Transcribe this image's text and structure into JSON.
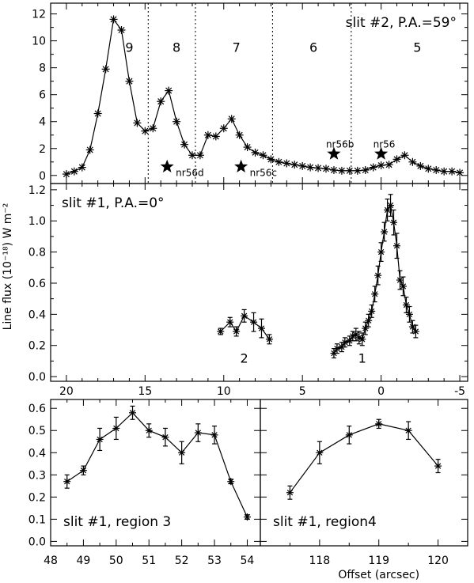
{
  "chart_data": [
    {
      "id": "top",
      "type": "line",
      "annotation": "slit  #2,  P.A.=59°",
      "xlim": [
        21,
        -5.5
      ],
      "ylim": [
        -0.6,
        12.8
      ],
      "yticks": [
        0,
        2,
        4,
        6,
        8,
        10,
        12
      ],
      "series": [
        {
          "marker": "asterisk",
          "x": [
            20.0,
            19.5,
            19.0,
            18.5,
            18.0,
            17.5,
            17.0,
            16.5,
            16.0,
            15.5,
            15.0,
            14.5,
            14.0,
            13.5,
            13.0,
            12.5,
            12.0,
            11.5,
            11.0,
            10.5,
            10.0,
            9.5,
            9.0,
            8.5,
            8.0,
            7.5,
            7.0,
            6.5,
            6.0,
            5.5,
            5.0,
            4.5,
            4.0,
            3.5,
            3.0,
            2.5,
            2.0,
            1.5,
            1.0,
            0.5,
            0.0,
            -0.5,
            -1.0,
            -1.5,
            -2.0,
            -2.5,
            -3.0,
            -3.5,
            -4.0,
            -4.5,
            -5.0
          ],
          "y": [
            0.1,
            0.3,
            0.6,
            1.9,
            4.6,
            7.9,
            11.6,
            10.8,
            7.0,
            3.9,
            3.3,
            3.5,
            5.5,
            6.3,
            4.0,
            2.3,
            1.5,
            1.5,
            3.0,
            2.9,
            3.5,
            4.2,
            3.0,
            2.1,
            1.7,
            1.5,
            1.2,
            1.0,
            0.9,
            0.8,
            0.7,
            0.6,
            0.55,
            0.5,
            0.4,
            0.35,
            0.35,
            0.35,
            0.4,
            0.6,
            0.75,
            0.8,
            1.2,
            1.5,
            1.0,
            0.7,
            0.5,
            0.4,
            0.3,
            0.3,
            0.2
          ]
        }
      ],
      "vlines": [
        14.8,
        11.8,
        6.9,
        1.9
      ],
      "region_labels": [
        {
          "text": "9",
          "x": 16.0,
          "y": 9.2
        },
        {
          "text": "8",
          "x": 13.0,
          "y": 9.2
        },
        {
          "text": "7",
          "x": 9.2,
          "y": 9.2
        },
        {
          "text": "6",
          "x": 4.3,
          "y": 9.2
        },
        {
          "text": "5",
          "x": -2.3,
          "y": 9.2
        }
      ],
      "stars": [
        {
          "label": "nr56d",
          "x": 13.6,
          "y": 0.65
        },
        {
          "label": "nr56c",
          "x": 8.9,
          "y": 0.65
        },
        {
          "label": "nr56b",
          "x": 3.0,
          "y": 1.6
        },
        {
          "label": "nr56",
          "x": 0.0,
          "y": 1.6
        }
      ]
    },
    {
      "id": "middle",
      "type": "line",
      "annotation": "slit  #1,  P.A.=0°",
      "ylabel": "Line flux (10⁻¹⁸) W m⁻²",
      "xlim": [
        21,
        -5.5
      ],
      "ylim": [
        -0.03,
        1.24
      ],
      "yticks": [
        0.0,
        0.2,
        0.4,
        0.6,
        0.8,
        1.0,
        1.2
      ],
      "xticks": [
        20,
        15,
        10,
        5,
        0,
        -5
      ],
      "series": [
        {
          "name": "2",
          "marker": "asterisk",
          "x": [
            10.2,
            9.6,
            9.2,
            8.7,
            8.1,
            7.6,
            7.1
          ],
          "y": [
            0.29,
            0.35,
            0.29,
            0.39,
            0.35,
            0.31,
            0.24
          ],
          "err": [
            0.02,
            0.03,
            0.03,
            0.04,
            0.06,
            0.06,
            0.03
          ]
        },
        {
          "name": "1",
          "marker": "asterisk",
          "x": [
            3.0,
            2.8,
            2.5,
            2.3,
            2.0,
            1.8,
            1.6,
            1.4,
            1.2,
            1.0,
            0.8,
            0.6,
            0.4,
            0.2,
            0.0,
            -0.2,
            -0.4,
            -0.6,
            -0.8,
            -1.0,
            -1.2,
            -1.4,
            -1.6,
            -1.8,
            -2.0,
            -2.2
          ],
          "y": [
            0.15,
            0.18,
            0.19,
            0.22,
            0.23,
            0.26,
            0.27,
            0.25,
            0.24,
            0.31,
            0.36,
            0.42,
            0.53,
            0.65,
            0.8,
            0.93,
            1.07,
            1.1,
            0.99,
            0.84,
            0.62,
            0.58,
            0.46,
            0.4,
            0.32,
            0.29
          ],
          "err": [
            0.03,
            0.03,
            0.03,
            0.03,
            0.03,
            0.03,
            0.04,
            0.04,
            0.04,
            0.04,
            0.04,
            0.04,
            0.05,
            0.06,
            0.06,
            0.06,
            0.07,
            0.07,
            0.08,
            0.08,
            0.06,
            0.06,
            0.05,
            0.05,
            0.04,
            0.04
          ]
        }
      ],
      "region_labels": [
        {
          "text": "2",
          "x": 8.7,
          "y": 0.09
        },
        {
          "text": "1",
          "x": 1.2,
          "y": 0.09
        }
      ]
    },
    {
      "id": "bottom-left",
      "type": "line",
      "annotation": "slit  #1,  region 3",
      "xlim": [
        48,
        54.4
      ],
      "ylim": [
        -0.02,
        0.64
      ],
      "yticks": [
        0.0,
        0.1,
        0.2,
        0.3,
        0.4,
        0.5,
        0.6
      ],
      "xticks": [
        48,
        49,
        50,
        51,
        52,
        53,
        54
      ],
      "series": [
        {
          "marker": "asterisk",
          "x": [
            48.5,
            49.0,
            49.5,
            50.0,
            50.5,
            51.0,
            51.5,
            52.0,
            52.5,
            53.0,
            53.5,
            54.0
          ],
          "y": [
            0.27,
            0.32,
            0.46,
            0.51,
            0.58,
            0.5,
            0.47,
            0.4,
            0.49,
            0.48,
            0.27,
            0.11
          ],
          "err": [
            0.03,
            0.02,
            0.05,
            0.05,
            0.03,
            0.03,
            0.04,
            0.05,
            0.04,
            0.04,
            0.01,
            0.01
          ]
        }
      ]
    },
    {
      "id": "bottom-right",
      "type": "line",
      "annotation": "slit  #1,  region4",
      "xlabel": "Offset (arcsec)",
      "xlim": [
        117,
        120.5
      ],
      "ylim": [
        -0.02,
        0.64
      ],
      "xticks": [
        118,
        119,
        120
      ],
      "series": [
        {
          "marker": "asterisk",
          "x": [
            117.5,
            118.0,
            118.5,
            119.0,
            119.5,
            120.0
          ],
          "y": [
            0.22,
            0.4,
            0.48,
            0.53,
            0.5,
            0.34
          ],
          "err": [
            0.03,
            0.05,
            0.04,
            0.02,
            0.04,
            0.03
          ]
        }
      ]
    }
  ]
}
